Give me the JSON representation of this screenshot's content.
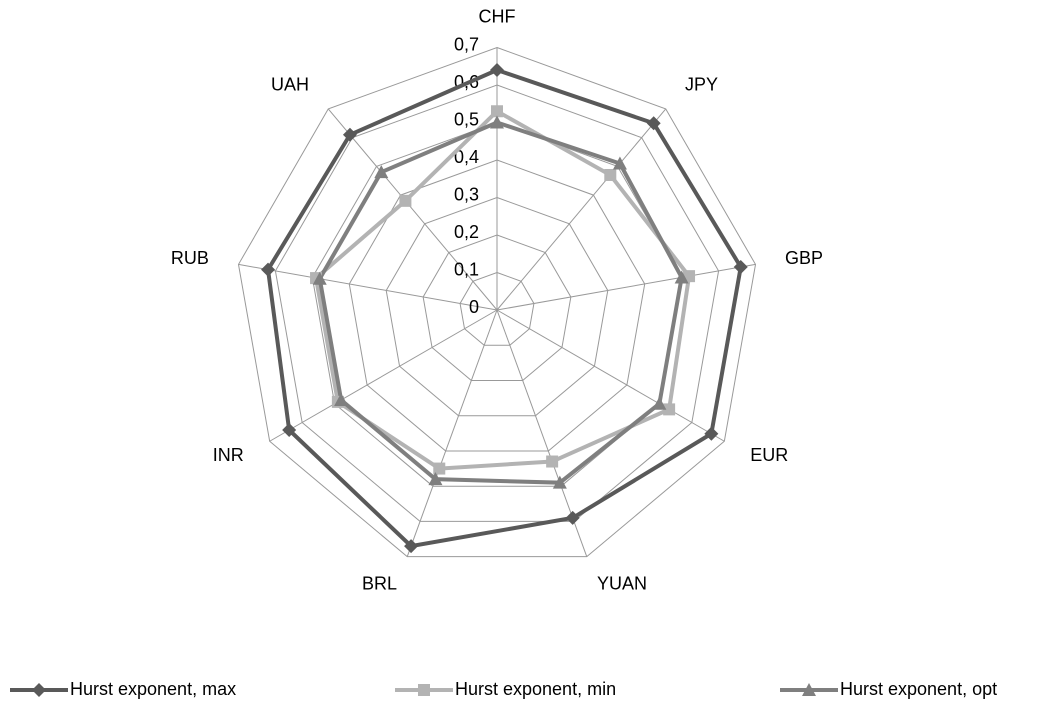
{
  "chart_data": {
    "type": "radar",
    "categories": [
      "CHF",
      "JPY",
      "GBP",
      "EUR",
      "YUAN",
      "BRL",
      "INR",
      "RUB",
      "UAH"
    ],
    "series": [
      {
        "name": "Hurst exponent, max",
        "color": "#595959",
        "marker": "diamond",
        "values": [
          0.64,
          0.65,
          0.66,
          0.66,
          0.59,
          0.67,
          0.64,
          0.62,
          0.61
        ]
      },
      {
        "name": "Hurst exponent, min",
        "color": "#b3b3b3",
        "marker": "square",
        "values": [
          0.53,
          0.47,
          0.52,
          0.53,
          0.43,
          0.45,
          0.49,
          0.49,
          0.38
        ]
      },
      {
        "name": "Hurst exponent, opt",
        "color": "#7f7f7f",
        "marker": "triangle",
        "values": [
          0.5,
          0.51,
          0.5,
          0.5,
          0.49,
          0.48,
          0.48,
          0.48,
          0.48
        ]
      }
    ],
    "ylim": [
      0,
      0.7
    ],
    "yticks": [
      0,
      {
        "value": 0.1,
        "label": "0,1"
      },
      {
        "value": 0.2,
        "label": "0,2"
      },
      {
        "value": 0.3,
        "label": "0,3"
      },
      {
        "value": 0.4,
        "label": "0,4"
      },
      {
        "value": 0.5,
        "label": "0,5"
      },
      {
        "value": 0.6,
        "label": "0,6"
      },
      {
        "value": 0.7,
        "label": "0,7"
      }
    ],
    "grid": true,
    "legend": "bottom"
  }
}
